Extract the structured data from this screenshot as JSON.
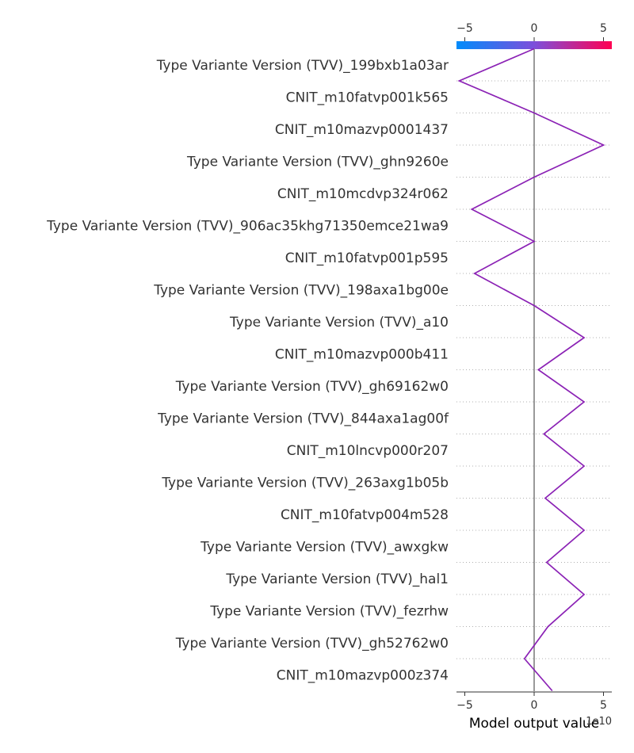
{
  "chart_data": {
    "type": "line",
    "title": "",
    "xlabel": "Model output value",
    "x_offset_label": "1e10",
    "xlim": [
      -5.6,
      5.6
    ],
    "x_ticks": [
      -5,
      0,
      5
    ],
    "x_tick_labels": [
      "−5",
      "0",
      "5"
    ],
    "base_value": 0,
    "colorbar": {
      "colors": [
        "#008bfb",
        "#7d4fdb",
        "#ff0052"
      ]
    },
    "line_color": "#8b22b5",
    "features": [
      "Type Variante Version (TVV)_199bxb1a03ar",
      "CNIT_m10fatvp001k565",
      "CNIT_m10mazvp0001437",
      "Type Variante Version (TVV)_ghn9260e",
      "CNIT_m10mcdvp324r062",
      "Type Variante Version (TVV)_906ac35khg71350emce21wa9",
      "CNIT_m10fatvp001p595",
      "Type Variante Version (TVV)_198axa1bg00e",
      "Type Variante Version (TVV)_a10",
      "CNIT_m10mazvp000b411",
      "Type Variante Version (TVV)_gh69162w0",
      "Type Variante Version (TVV)_844axa1ag00f",
      "CNIT_m10lncvp000r207",
      "Type Variante Version (TVV)_263axg1b05b",
      "CNIT_m10fatvp004m528",
      "Type Variante Version (TVV)_awxgkw",
      "Type Variante Version (TVV)_hal1",
      "Type Variante Version (TVV)_fezrhw",
      "Type Variante Version (TVV)_gh52762w0",
      "CNIT_m10mazvp000z374"
    ],
    "cumulative_values": [
      0.0,
      -5.4,
      0.0,
      5.0,
      0.0,
      -4.5,
      0.0,
      -4.3,
      0.0,
      3.6,
      0.3,
      3.6,
      0.7,
      3.6,
      0.8,
      3.6,
      0.9,
      3.6,
      1.0,
      -0.7,
      1.3
    ]
  }
}
